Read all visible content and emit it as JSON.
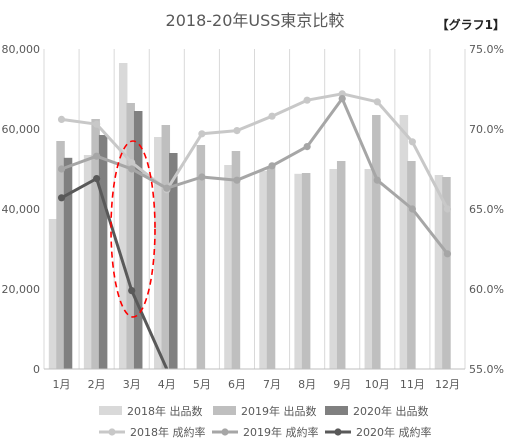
{
  "chart_data": {
    "type": "bar",
    "title": "2018-20年USS東京比較",
    "tag": "【グラフ1】",
    "categories": [
      "1月",
      "2月",
      "3月",
      "4月",
      "5月",
      "6月",
      "7月",
      "8月",
      "9月",
      "10月",
      "11月",
      "12月"
    ],
    "y_left": {
      "min": 0,
      "max": 80000,
      "ticks": [
        "0",
        "20,000",
        "40,000",
        "60,000",
        "80,000"
      ]
    },
    "y_right": {
      "min": 0.55,
      "max": 0.75,
      "ticks": [
        "55.0%",
        "60.0%",
        "65.0%",
        "70.0%",
        "75.0%"
      ]
    },
    "bar_series": [
      {
        "name": "2018年 出品数",
        "color": "#d9d9d9",
        "values": [
          37500,
          53500,
          76500,
          58000,
          null,
          51000,
          49500,
          48800,
          50000,
          50000,
          63500,
          48500
        ]
      },
      {
        "name": "2019年 出品数",
        "color": "#bfbfbf",
        "values": [
          57000,
          62500,
          66500,
          61000,
          56000,
          54500,
          50500,
          49000,
          52000,
          63500,
          52000,
          48000
        ]
      },
      {
        "name": "2020年 出品数",
        "color": "#808080",
        "values": [
          52800,
          58500,
          64500,
          54000,
          null,
          null,
          null,
          null,
          null,
          null,
          null,
          null
        ]
      }
    ],
    "line_series": [
      {
        "name": "2018年 成約率",
        "color": "#c8c8c8",
        "values": [
          0.706,
          0.703,
          0.679,
          0.662,
          0.697,
          0.699,
          0.708,
          0.718,
          0.722,
          0.717,
          0.692,
          0.65
        ]
      },
      {
        "name": "2019年 成約率",
        "color": "#a6a6a6",
        "values": [
          0.675,
          0.683,
          0.675,
          0.663,
          0.67,
          0.668,
          0.677,
          0.689,
          0.719,
          0.668,
          0.65,
          0.622
        ]
      },
      {
        "name": "2020年 成約率",
        "color": "#595959",
        "values": [
          0.657,
          0.669,
          0.599,
          0.54,
          null,
          null,
          null,
          null,
          null,
          null,
          null,
          null
        ]
      }
    ],
    "annotation": "red dashed ellipse around 3月",
    "grid": "vertical lines only",
    "legend_position": "bottom"
  }
}
